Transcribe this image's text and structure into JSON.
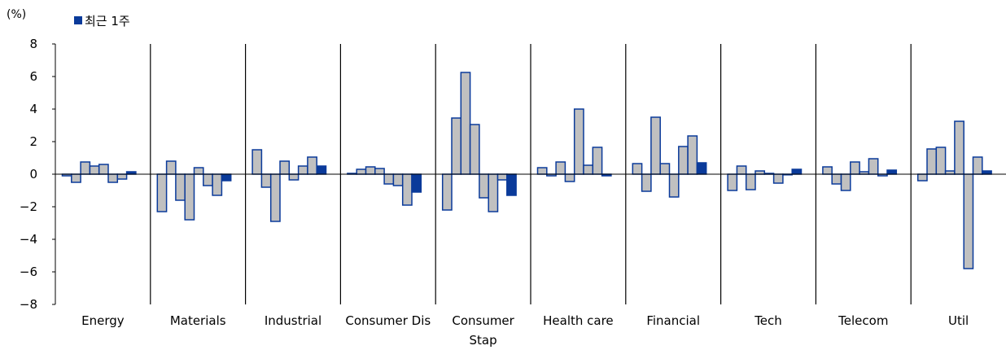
{
  "chart_data": {
    "type": "bar",
    "unit_label": "(%)",
    "legend": [
      {
        "name": "최근 1주",
        "color": "#0a3a9a"
      }
    ],
    "ylim": [
      -8,
      8
    ],
    "yticks": [
      {
        "value": 8,
        "label": "8"
      },
      {
        "value": 6,
        "label": "6"
      },
      {
        "value": 4,
        "label": "4"
      },
      {
        "value": 2,
        "label": "2"
      },
      {
        "value": 0,
        "label": "0"
      },
      {
        "value": -2,
        "label": "−2"
      },
      {
        "value": -4,
        "label": "−4"
      },
      {
        "value": -6,
        "label": "−6"
      },
      {
        "value": -8,
        "label": "−8"
      }
    ],
    "colors": {
      "bar_fill": "#c0c0c0",
      "bar_stroke": "#0a3a9a",
      "highlight": "#0a3a9a",
      "axis": "#000000"
    },
    "groups": [
      {
        "label": [
          "Energy"
        ],
        "values": [
          -0.1,
          -0.5,
          0.75,
          0.5,
          0.6,
          -0.5,
          -0.3,
          0.15
        ]
      },
      {
        "label": [
          "Materials"
        ],
        "values": [
          -2.3,
          0.8,
          -1.6,
          -2.8,
          0.4,
          -0.7,
          -1.3,
          -0.4
        ]
      },
      {
        "label": [
          "Industrial"
        ],
        "values": [
          1.5,
          -0.8,
          -2.9,
          0.8,
          -0.35,
          0.5,
          1.05,
          0.5
        ]
      },
      {
        "label": [
          "Consumer Dis"
        ],
        "values": [
          0.05,
          0.3,
          0.45,
          0.35,
          -0.6,
          -0.7,
          -1.9,
          -1.1
        ]
      },
      {
        "label": [
          "Consumer",
          "Stap"
        ],
        "values": [
          -2.2,
          3.45,
          6.25,
          3.05,
          -1.45,
          -2.3,
          -0.35,
          -1.3
        ]
      },
      {
        "label": [
          "Health care"
        ],
        "values": [
          0.4,
          -0.1,
          0.75,
          -0.45,
          4.0,
          0.55,
          1.65,
          -0.1
        ]
      },
      {
        "label": [
          "Financial"
        ],
        "values": [
          0.65,
          -1.05,
          3.5,
          0.65,
          -1.4,
          1.7,
          2.35,
          0.7
        ]
      },
      {
        "label": [
          "Tech"
        ],
        "values": [
          -1.0,
          0.5,
          -0.95,
          0.2,
          0.05,
          -0.55,
          0.0,
          0.3
        ]
      },
      {
        "label": [
          "Telecom"
        ],
        "values": [
          0.45,
          -0.6,
          -1.0,
          0.75,
          0.15,
          0.95,
          -0.1,
          0.25
        ]
      },
      {
        "label": [
          "Util"
        ],
        "values": [
          -0.4,
          1.55,
          1.65,
          0.2,
          3.25,
          -5.8,
          1.05,
          0.2
        ]
      }
    ]
  }
}
